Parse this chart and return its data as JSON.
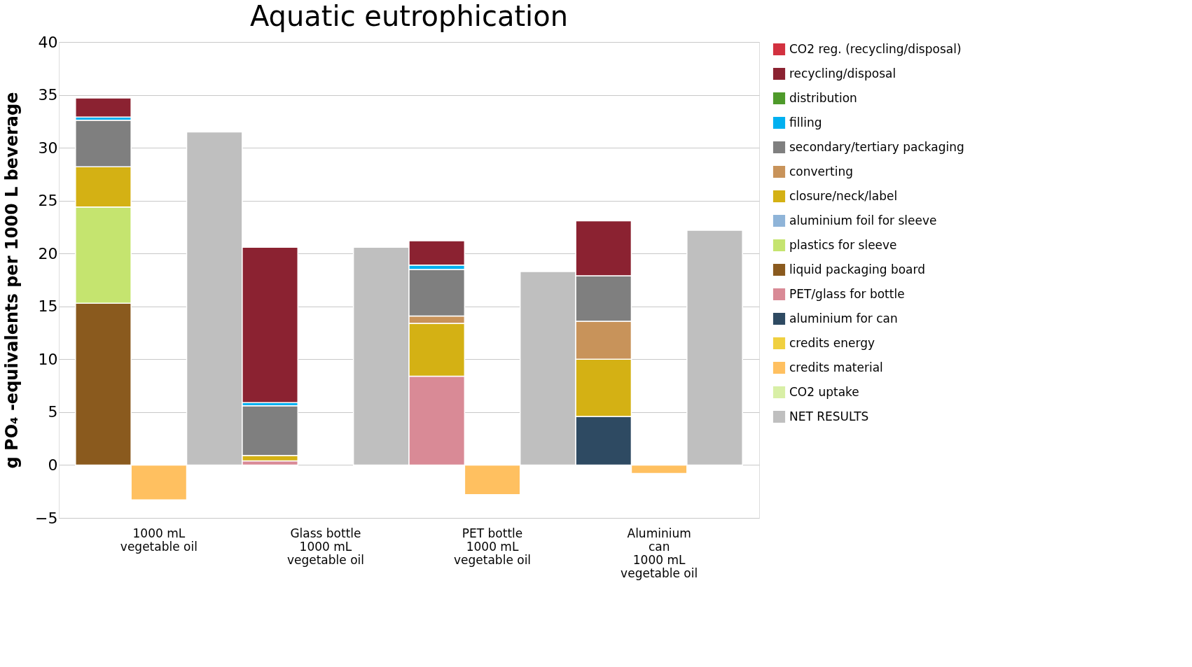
{
  "chart_data": {
    "type": "bar",
    "title": "Aquatic eutrophication",
    "ylabel": "g PO₄ -equivalents per 1000 L beverage",
    "categories": [
      null,
      "1000 mL\nvegetable oil",
      null,
      null,
      "Glass bottle\n1000 mL\nvegetable oil",
      null,
      null,
      "PET bottle\n1000 mL\nvegetable oil",
      null,
      null,
      "Aluminium\ncan\n1000 mL\nvegetable oil",
      null
    ],
    "stacked": true,
    "ylim": [
      -5,
      40
    ],
    "yticks": [
      -5,
      0,
      5,
      10,
      15,
      20,
      25,
      30,
      35,
      40
    ],
    "grid": "y",
    "legend": "top right",
    "series": [
      {
        "name": "NET RESULTS",
        "color": "#bfbfbf",
        "values": [
          null,
          null,
          31.5,
          null,
          null,
          20.6,
          null,
          null,
          18.3,
          null,
          null,
          22.2
        ]
      },
      {
        "name": "CO2 uptake",
        "color": "#d8efa6",
        "values": [
          null,
          null,
          null,
          null,
          null,
          null,
          null,
          null,
          null,
          null,
          null,
          null
        ]
      },
      {
        "name": "credits material",
        "color": "#ffc060",
        "values": [
          null,
          -3.3,
          null,
          null,
          null,
          null,
          null,
          -2.8,
          null,
          null,
          -0.8,
          null
        ]
      },
      {
        "name": "credits energy",
        "color": "#f0d040",
        "values": [
          null,
          null,
          null,
          null,
          null,
          null,
          null,
          null,
          null,
          null,
          null,
          null
        ]
      },
      {
        "name": "aluminium for can",
        "color": "#2e4a62",
        "values": [
          null,
          null,
          null,
          null,
          null,
          null,
          null,
          null,
          null,
          4.6,
          null,
          null
        ]
      },
      {
        "name": "PET/glass for bottle",
        "color": "#d98a96",
        "values": [
          null,
          null,
          null,
          0.4,
          null,
          null,
          8.4,
          null,
          null,
          null,
          null,
          null
        ]
      },
      {
        "name": "liquid packaging board",
        "color": "#8a5a1e",
        "values": [
          15.3,
          null,
          null,
          null,
          null,
          null,
          null,
          null,
          null,
          null,
          null,
          null
        ]
      },
      {
        "name": "plastics for sleeve",
        "color": "#c5e46f",
        "values": [
          9.1,
          null,
          null,
          null,
          null,
          null,
          null,
          null,
          null,
          null,
          null,
          null
        ]
      },
      {
        "name": "aluminium foil for sleeve",
        "color": "#8fb4d8",
        "values": [
          null,
          null,
          null,
          null,
          null,
          null,
          null,
          null,
          null,
          null,
          null,
          null
        ]
      },
      {
        "name": "closure/neck/label",
        "color": "#d4b114",
        "values": [
          3.8,
          null,
          null,
          0.5,
          null,
          null,
          5.0,
          null,
          null,
          5.4,
          null,
          null
        ]
      },
      {
        "name": "converting",
        "color": "#c8935a",
        "values": [
          null,
          null,
          null,
          null,
          null,
          null,
          0.7,
          null,
          null,
          3.6,
          null,
          null
        ]
      },
      {
        "name": "secondary/tertiary packaging",
        "color": "#7f7f7f",
        "values": [
          4.4,
          null,
          null,
          4.7,
          null,
          null,
          4.4,
          null,
          null,
          4.3,
          null,
          null
        ]
      },
      {
        "name": "filling",
        "color": "#00b0f0",
        "values": [
          0.3,
          null,
          null,
          0.3,
          null,
          null,
          0.4,
          null,
          null,
          null,
          null,
          null
        ]
      },
      {
        "name": "distribution",
        "color": "#4e9a2a",
        "values": [
          null,
          null,
          null,
          null,
          null,
          null,
          null,
          null,
          null,
          null,
          null,
          null
        ]
      },
      {
        "name": "recycling/disposal",
        "color": "#8b2231",
        "values": [
          1.8,
          null,
          null,
          14.7,
          null,
          null,
          2.3,
          null,
          null,
          5.2,
          null,
          null
        ]
      },
      {
        "name": "CO2 reg. (recycling/disposal)",
        "color": "#d2313f",
        "values": [
          null,
          null,
          null,
          null,
          null,
          null,
          null,
          null,
          null,
          null,
          null,
          null
        ]
      }
    ]
  }
}
